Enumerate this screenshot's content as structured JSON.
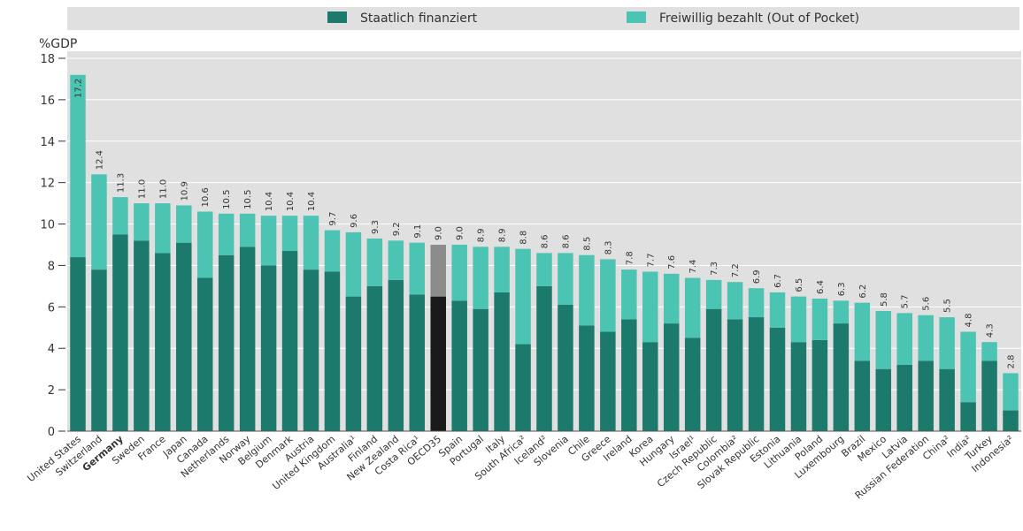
{
  "legend": {
    "items": [
      {
        "label": "Staatlich finanziert",
        "color": "#1b7a6b"
      },
      {
        "label": "Freiwillig bezahlt (Out of Pocket)",
        "color": "#4cc4b4"
      }
    ]
  },
  "chart_data": {
    "type": "bar",
    "stacked": true,
    "ylabel": "%GDP",
    "ylim": [
      0,
      18
    ],
    "yticks": [
      0,
      2,
      4,
      6,
      8,
      10,
      12,
      14,
      16,
      18
    ],
    "grid": true,
    "legend_position": "top",
    "highlight_category": "Germany",
    "highlight_colors": {
      "OECD35": {
        "Staatlich finanziert": "#1a1a1a",
        "Freiwillig bezahlt (Out of Pocket)": "#8c8c8c"
      }
    },
    "categories": [
      "United States",
      "Switzerland",
      "Germany",
      "Sweden",
      "France",
      "Japan",
      "Canada",
      "Netherlands",
      "Norway",
      "Belgium",
      "Denmark",
      "Austria",
      "United Kingdom",
      "Australia¹",
      "Finland",
      "New Zealand",
      "Costa Rica¹",
      "OECD35",
      "Spain",
      "Portugal",
      "Italy",
      "South Africa²",
      "Iceland²",
      "Slovenia",
      "Chile",
      "Greece",
      "Ireland",
      "Korea",
      "Hungary",
      "Israel¹",
      "Czech Republic",
      "Colombia²",
      "Slovak Republic",
      "Estonia",
      "Lithuania",
      "Poland",
      "Luxembourg",
      "Brazil",
      "Mexico",
      "Latvia",
      "Russian Federation",
      "China²",
      "India²",
      "Turkey",
      "Indonesia²"
    ],
    "totals_labels": [
      "17.2",
      "12.4",
      "11.3",
      "11.0",
      "11.0",
      "10.9",
      "10.6",
      "10.5",
      "10.5",
      "10.4",
      "10.4",
      "10.4",
      "9.7",
      "9.6",
      "9.3",
      "9.2",
      "9.1",
      "9.0",
      "9.0",
      "8.9",
      "8.9",
      "8.8",
      "8.6",
      "8.6",
      "8.5",
      "8.3",
      "7.8",
      "7.7",
      "7.6",
      "7.4",
      "7.3",
      "7.2",
      "6.9",
      "6.7",
      "6.5",
      "6.4",
      "6.3",
      "6.2",
      "5.8",
      "5.7",
      "5.6",
      "5.5",
      "4.8",
      "4.3",
      "2.8"
    ],
    "series": [
      {
        "name": "Staatlich finanziert",
        "values": [
          8.4,
          7.8,
          9.5,
          9.2,
          8.6,
          9.1,
          7.4,
          8.5,
          8.9,
          8.0,
          8.7,
          7.8,
          7.7,
          6.5,
          7.0,
          7.3,
          6.6,
          6.5,
          6.3,
          5.9,
          6.7,
          4.2,
          7.0,
          6.1,
          5.1,
          4.8,
          5.4,
          4.3,
          5.2,
          4.5,
          5.9,
          5.4,
          5.5,
          5.0,
          4.3,
          4.4,
          5.2,
          3.4,
          3.0,
          3.2,
          3.4,
          3.0,
          1.4,
          3.4,
          1.0
        ]
      },
      {
        "name": "Freiwillig bezahlt (Out of Pocket)",
        "values": [
          8.8,
          4.6,
          1.8,
          1.8,
          2.4,
          1.8,
          3.2,
          2.0,
          1.6,
          2.4,
          1.7,
          2.6,
          2.0,
          3.1,
          2.3,
          1.9,
          2.5,
          2.5,
          2.7,
          3.0,
          2.2,
          4.6,
          1.6,
          2.5,
          3.4,
          3.5,
          2.4,
          3.4,
          2.4,
          2.9,
          1.4,
          1.8,
          1.4,
          1.7,
          2.2,
          2.0,
          1.1,
          2.8,
          2.8,
          2.5,
          2.2,
          2.5,
          3.4,
          0.9,
          1.8
        ]
      }
    ]
  }
}
